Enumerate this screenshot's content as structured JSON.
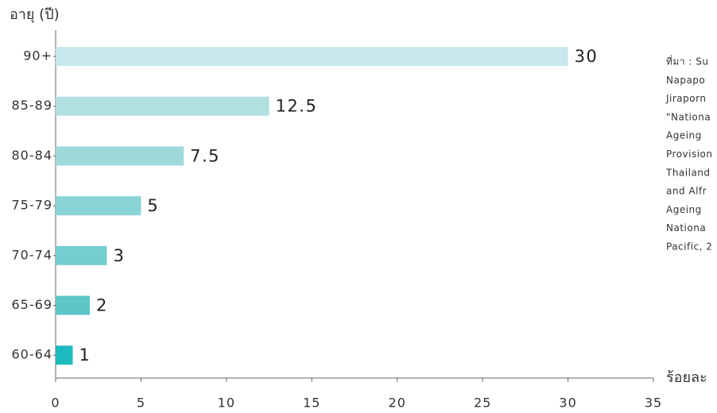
{
  "chart_data": {
    "type": "bar",
    "orientation": "horizontal",
    "y_axis_label": "อายุ (ปี)",
    "x_axis_label": "ร้อยละ",
    "categories": [
      "90+",
      "85-89",
      "80-84",
      "75-79",
      "70-74",
      "65-69",
      "60-64"
    ],
    "values": [
      30,
      12.5,
      7.5,
      5,
      3,
      2,
      1
    ],
    "colors": [
      "#c6e8ea",
      "#b1e0e2",
      "#9fd9dc",
      "#8ad3d6",
      "#74cdd0",
      "#5cc6c9",
      "#1dbbbe"
    ],
    "xlim": [
      0,
      35
    ],
    "xticks": [
      0,
      5,
      10,
      15,
      20,
      25,
      30,
      35
    ],
    "source": [
      "ที่มา : Su",
      "Napapo",
      "Jiraporn",
      "\"Nationa",
      "Ageing",
      "Provision",
      "Thailand",
      "and Alfr",
      "Ageing",
      "Nationa",
      "Pacific, 2"
    ]
  }
}
